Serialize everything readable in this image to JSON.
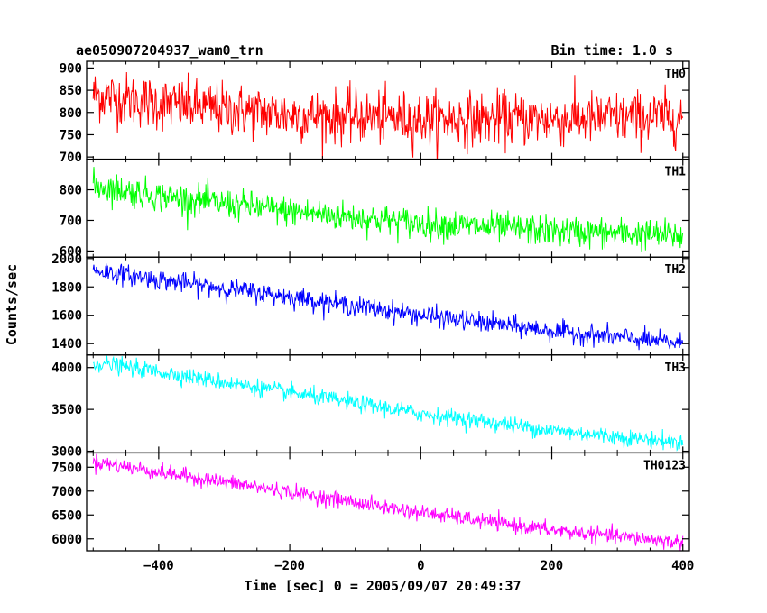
{
  "chart_data": {
    "type": "line",
    "title": "ae050907204937_wam0_trn",
    "bin_time": "Bin time: 1.0 s",
    "xlabel": "Time [sec] 0 = 2005/09/07 20:49:37",
    "ylabel": "Counts/sec",
    "xlim": [
      -510,
      410
    ],
    "x_ticks": [
      -400,
      -200,
      0,
      200,
      400
    ],
    "x_tick_labels": [
      "−400",
      "−200",
      "0",
      "200",
      "400"
    ],
    "x_data_range": [
      -500,
      400
    ],
    "bin_seconds": 1.0,
    "grid": false,
    "panels": [
      {
        "name": "TH0",
        "color": "#ff0000",
        "ylim": [
          695,
          915
        ],
        "y_ticks": [
          700,
          750,
          800,
          850,
          900
        ],
        "y_tick_labels": [
          "700",
          "750",
          "800",
          "850",
          "900"
        ],
        "trend": {
          "x": [
            -500,
            -400,
            -200,
            0,
            200,
            400
          ],
          "y": [
            840,
            820,
            795,
            785,
            785,
            790
          ]
        },
        "noise_sigma": 30
      },
      {
        "name": "TH1",
        "color": "#00ff00",
        "ylim": [
          580,
          900
        ],
        "y_ticks": [
          600,
          700,
          800
        ],
        "y_tick_labels": [
          "600",
          "700",
          "800"
        ],
        "trend": {
          "x": [
            -500,
            -400,
            -200,
            0,
            200,
            400
          ],
          "y": [
            815,
            780,
            730,
            690,
            665,
            650
          ]
        },
        "noise_sigma": 25
      },
      {
        "name": "TH2",
        "color": "#0000ff",
        "ylim": [
          1320,
          2010
        ],
        "y_ticks": [
          1400,
          1600,
          1800,
          2000
        ],
        "y_tick_labels": [
          "1400",
          "1600",
          "1800",
          "2000"
        ],
        "trend": {
          "x": [
            -500,
            -400,
            -200,
            0,
            200,
            400
          ],
          "y": [
            1920,
            1850,
            1730,
            1600,
            1490,
            1400
          ]
        },
        "noise_sigma": 35
      },
      {
        "name": "TH3",
        "color": "#00ffff",
        "ylim": [
          2980,
          4150
        ],
        "y_ticks": [
          3000,
          3500,
          4000
        ],
        "y_tick_labels": [
          "3000",
          "3500",
          "4000"
        ],
        "trend": {
          "x": [
            -500,
            -400,
            -200,
            0,
            200,
            400
          ],
          "y": [
            4060,
            3950,
            3700,
            3450,
            3250,
            3100
          ]
        },
        "noise_sigma": 50
      },
      {
        "name": "TH0123",
        "color": "#ff00ff",
        "ylim": [
          5750,
          7800
        ],
        "y_ticks": [
          6000,
          6500,
          7000,
          7500
        ],
        "y_tick_labels": [
          "6000",
          "6500",
          "7000",
          "7500"
        ],
        "trend": {
          "x": [
            -500,
            -400,
            -200,
            0,
            200,
            400
          ],
          "y": [
            7620,
            7400,
            6980,
            6550,
            6180,
            5920
          ]
        },
        "noise_sigma": 80
      }
    ]
  }
}
